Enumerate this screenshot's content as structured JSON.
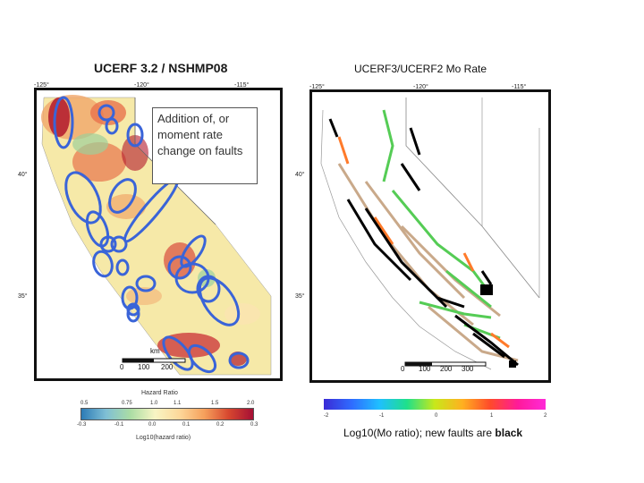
{
  "left_map": {
    "title": "UCERF 3.2 / NSHMP08",
    "lon_ticks": [
      "-125°",
      "-120°",
      "-115°"
    ],
    "lat_ticks": [
      "40°",
      "35°"
    ],
    "scale_unit": "km",
    "scale_values": [
      "0",
      "100",
      "200"
    ],
    "colorbar": {
      "title": "Hazard Ratio",
      "top_labels": [
        "0.5",
        "0.75",
        "1.0",
        "1.1",
        "1.5",
        "2.0"
      ],
      "bottom_labels": [
        "-0.3",
        "-0.1",
        "0.0",
        "0.1",
        "0.2",
        "0.3"
      ],
      "axis_label": "Log10(hazard ratio)"
    }
  },
  "right_map": {
    "title": "UCERF3/UCERF2 Mo Rate",
    "lon_ticks": [
      "-125°",
      "-120°",
      "-115°"
    ],
    "lat_ticks": [
      "40°",
      "35°"
    ],
    "scale_values": [
      "0",
      "100",
      "200",
      "300"
    ],
    "colorbar": {
      "labels": [
        "-2",
        "-1",
        "0",
        "1",
        "2"
      ]
    },
    "caption_prefix": "Log10(Mo ratio); new faults are ",
    "caption_bold": "black"
  },
  "callout": {
    "text": "Addition of, or moment rate change on faults"
  },
  "colors": {
    "ellipse_stroke": "#3a64d8",
    "fault_black": "#000000",
    "fault_green": "#55cc55",
    "fault_orange": "#ff7a2a",
    "fault_tan": "#c9a98a"
  }
}
